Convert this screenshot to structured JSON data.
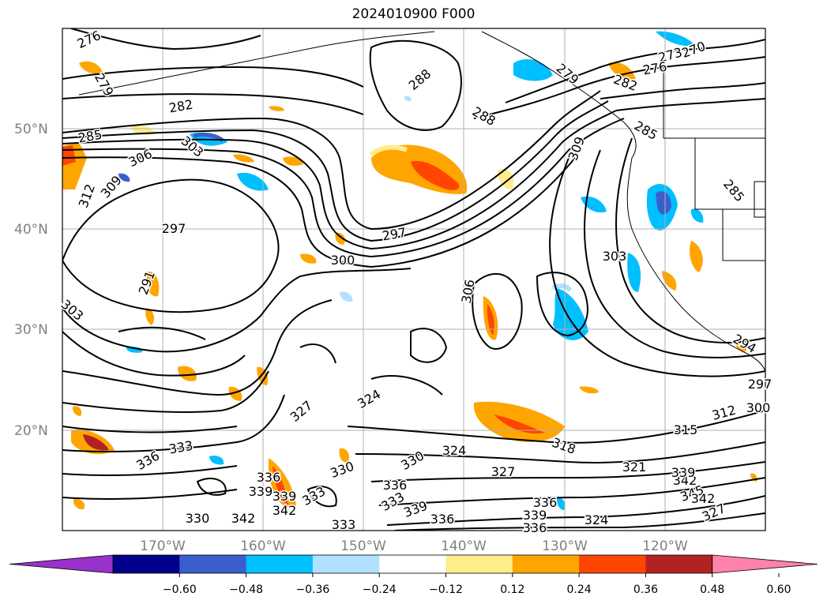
{
  "title": "2024010900 F000",
  "lat_labels": [
    "50°N",
    "40°N",
    "30°N",
    "20°N"
  ],
  "lon_labels": [
    "170°W",
    "160°W",
    "150°W",
    "140°W",
    "130°W",
    "120°W"
  ],
  "colorbar": {
    "ticks": [
      "−0.60",
      "−0.48",
      "−0.36",
      "−0.24",
      "−0.12",
      "0.12",
      "0.24",
      "0.36",
      "0.48",
      "0.60"
    ],
    "colors": [
      "#9932cc",
      "#00008b",
      "#3a5fcd",
      "#00bfff",
      "#b0e2ff",
      "#ffffff",
      "#ffec8b",
      "#ffa500",
      "#ff4500",
      "#b22222",
      "#ff82ab"
    ]
  },
  "contour_labels": [
    "276",
    "279",
    "282",
    "285",
    "288",
    "288",
    "273",
    "276",
    "270",
    "279",
    "282",
    "285",
    "303",
    "306",
    "309",
    "312",
    "297",
    "297",
    "300",
    "309",
    "303",
    "306",
    "303",
    "291",
    "285",
    "294",
    "297",
    "300",
    "324",
    "327",
    "312",
    "315",
    "318",
    "321",
    "324",
    "327",
    "330",
    "333",
    "336",
    "336",
    "339",
    "342",
    "330",
    "333",
    "336",
    "339",
    "342",
    "345",
    "327",
    "324",
    "333",
    "336",
    "339",
    "336",
    "339",
    "342",
    "330",
    "333",
    "336",
    "339",
    "342"
  ]
}
